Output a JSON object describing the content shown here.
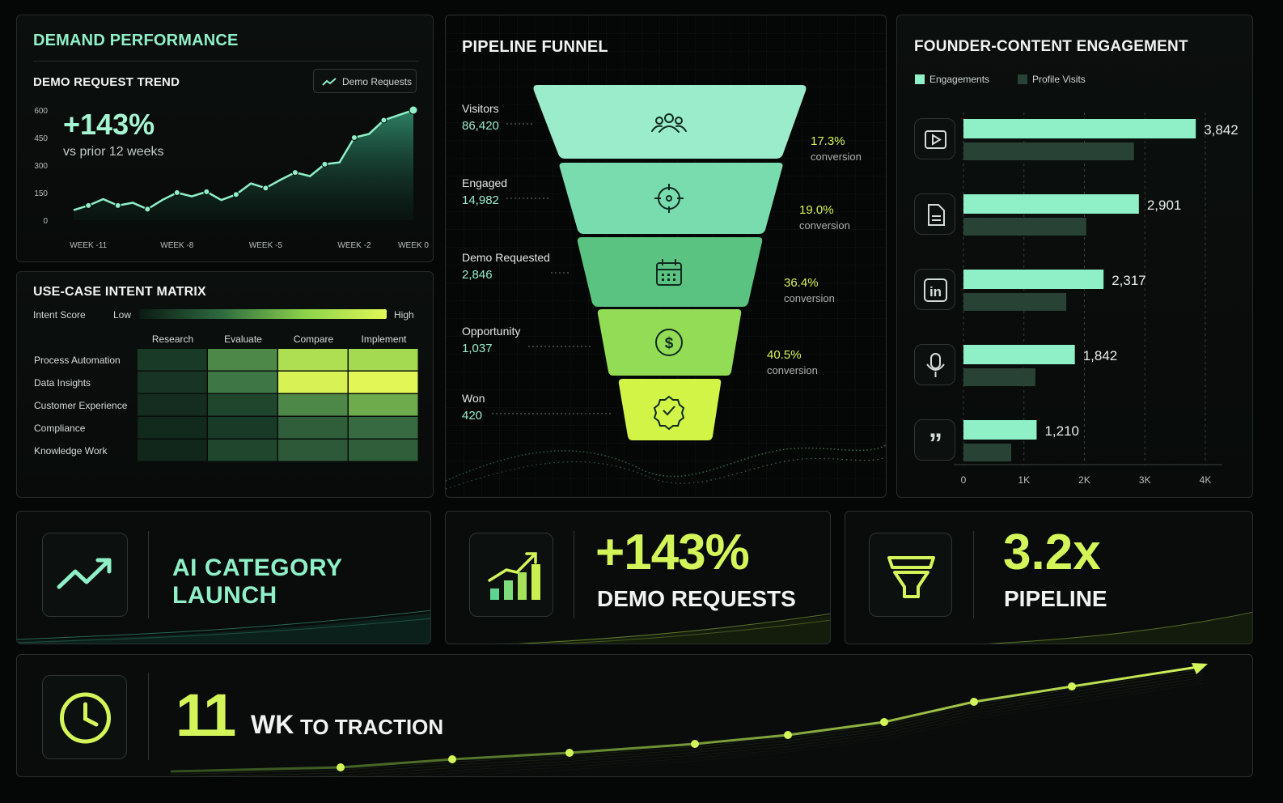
{
  "colors": {
    "mint": "#8ff0c8",
    "lime": "#d4f55a",
    "accent_green": "#7ee3b3",
    "dark_bar": "#284236"
  },
  "demand": {
    "title": "DEMAND PERFORMANCE",
    "subtitle": "DEMO REQUEST TREND",
    "legend_label": "Demo Requests",
    "kpi_value": "+143%",
    "kpi_caption": "vs prior 12 weeks"
  },
  "matrix": {
    "title": "USE-CASE INTENT MATRIX",
    "scale_label": "Intent Score",
    "low_label": "Low",
    "high_label": "High"
  },
  "funnel": {
    "title": "PIPELINE FUNNEL",
    "stages": [
      {
        "label": "Visitors",
        "value": "86,420",
        "icon": "users-icon"
      },
      {
        "label": "Engaged",
        "value": "14,982",
        "icon": "target-icon"
      },
      {
        "label": "Demo Requested",
        "value": "2,846",
        "icon": "calendar-icon"
      },
      {
        "label": "Opportunity",
        "value": "1,037",
        "icon": "dollar-icon"
      },
      {
        "label": "Won",
        "value": "420",
        "icon": "check-badge-icon"
      }
    ],
    "conversions": [
      {
        "value": "17.3%",
        "caption": "conversion"
      },
      {
        "value": "19.0%",
        "caption": "conversion"
      },
      {
        "value": "36.4%",
        "caption": "conversion"
      },
      {
        "value": "40.5%",
        "caption": "conversion"
      }
    ]
  },
  "engagement": {
    "title": "FOUNDER-CONTENT ENGAGEMENT",
    "legend": [
      "Engagements",
      "Profile Visits"
    ],
    "row_icons": [
      "video-icon",
      "document-icon",
      "linkedin-icon",
      "microphone-icon",
      "quote-icon"
    ]
  },
  "cards": {
    "launch_label": "AI CATEGORY LAUNCH",
    "demo_value": "+143%",
    "demo_label": "DEMO REQUESTS",
    "pipeline_value": "3.2x",
    "pipeline_label": "PIPELINE",
    "traction_value": "11",
    "traction_unit": "WK",
    "traction_label": "TO TRACTION"
  },
  "chart_data": [
    {
      "type": "area",
      "title": "DEMO REQUEST TREND",
      "series": [
        {
          "name": "Demo Requests",
          "values": [
            55,
            80,
            115,
            80,
            95,
            60,
            110,
            150,
            130,
            155,
            110,
            140,
            200,
            175,
            220,
            260,
            240,
            305,
            315,
            450,
            470,
            545,
            600
          ]
        }
      ],
      "x": [
        -11.5,
        -11,
        -10.5,
        -10,
        -9.5,
        -9,
        -8.5,
        -8,
        -7.5,
        -7,
        -6.5,
        -6,
        -5.5,
        -5,
        -4.5,
        -4,
        -3.5,
        -3,
        -2.5,
        -2,
        -1.5,
        -1,
        0
      ],
      "xticks": [
        "WEEK -11",
        "WEEK -8",
        "WEEK -5",
        "WEEK -2",
        "WEEK 0"
      ],
      "yticks": [
        "0",
        "150",
        "300",
        "450",
        "600"
      ],
      "ylim": [
        0,
        600
      ],
      "grid": false,
      "legend_position": "top-right"
    },
    {
      "type": "heatmap",
      "title": "USE-CASE INTENT MATRIX",
      "columns": [
        "Research",
        "Evaluate",
        "Compare",
        "Implement"
      ],
      "rows": [
        "Process Automation",
        "Data Insights",
        "Customer Experience",
        "Compliance",
        "Knowledge Work"
      ],
      "values": [
        [
          0.25,
          0.55,
          0.85,
          0.82
        ],
        [
          0.2,
          0.5,
          0.97,
          1.0
        ],
        [
          0.15,
          0.3,
          0.55,
          0.65
        ],
        [
          0.12,
          0.25,
          0.4,
          0.45
        ],
        [
          0.1,
          0.3,
          0.38,
          0.4
        ]
      ],
      "scale": [
        "Low",
        "High"
      ]
    },
    {
      "type": "bar",
      "title": "FOUNDER-CONTENT ENGAGEMENT",
      "orientation": "horizontal",
      "series": [
        {
          "name": "Engagements",
          "values": [
            3842,
            2901,
            2317,
            1842,
            1210
          ]
        },
        {
          "name": "Profile Visits",
          "values": [
            2820,
            2030,
            1700,
            1190,
            790
          ]
        }
      ],
      "value_labels": [
        "3,842",
        "2,901",
        "2,317",
        "1,842",
        "1,210"
      ],
      "xticks": [
        "0",
        "1K",
        "2K",
        "3K",
        "4K"
      ],
      "xlim": [
        0,
        4000
      ],
      "legend_position": "top-left"
    },
    {
      "type": "line",
      "series": [
        {
          "values": [
            1,
            2,
            3,
            4,
            5,
            6,
            7,
            8,
            9,
            10
          ]
        }
      ],
      "grid": false
    }
  ]
}
